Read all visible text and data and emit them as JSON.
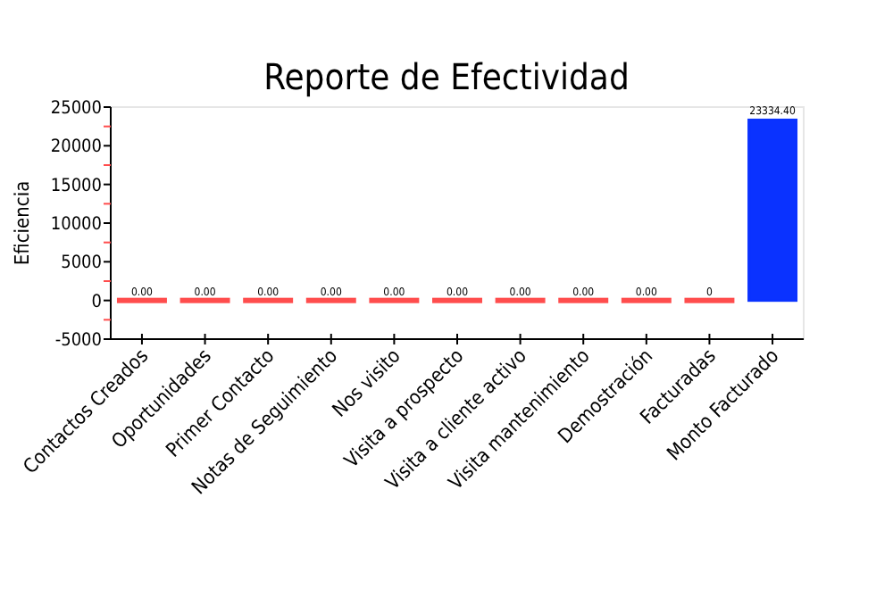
{
  "chart_data": {
    "type": "bar",
    "title": "Reporte de Efectividad",
    "ylabel": "Eficiencia",
    "categories": [
      "Contactos Creados",
      "Oportunidades",
      "Primer Contacto",
      "Notas de Seguimiento",
      "Nos visito",
      "Visita a prospecto",
      "Visita a cliente activo",
      "Visita mantenimiento",
      "Demostración",
      "Facturadas",
      "Monto Facturado"
    ],
    "values": [
      0,
      0,
      0,
      0,
      0,
      0,
      0,
      0,
      0,
      0,
      23334.4
    ],
    "value_labels": [
      "0.00",
      "0.00",
      "0.00",
      "0.00",
      "0.00",
      "0.00",
      "0.00",
      "0.00",
      "0.00",
      "0",
      "23334.40"
    ],
    "colors": [
      "#ff4d4d",
      "#ff4d4d",
      "#ff4d4d",
      "#ff4d4d",
      "#ff4d4d",
      "#ff4d4d",
      "#ff4d4d",
      "#ff4d4d",
      "#ff4d4d",
      "#ff4d4d",
      "#0a32ff"
    ],
    "ylim": [
      -5000,
      25000
    ],
    "yticks": [
      -5000,
      {
        "value": -2500,
        "label": null
      },
      0,
      {
        "value": 2500,
        "label": null
      },
      5000,
      {
        "value": 7500,
        "label": null
      },
      10000,
      {
        "value": 12500,
        "label": null
      },
      15000,
      {
        "value": 17500,
        "label": null
      },
      20000,
      {
        "value": 22500,
        "label": null
      },
      25000
    ],
    "grid": false
  }
}
